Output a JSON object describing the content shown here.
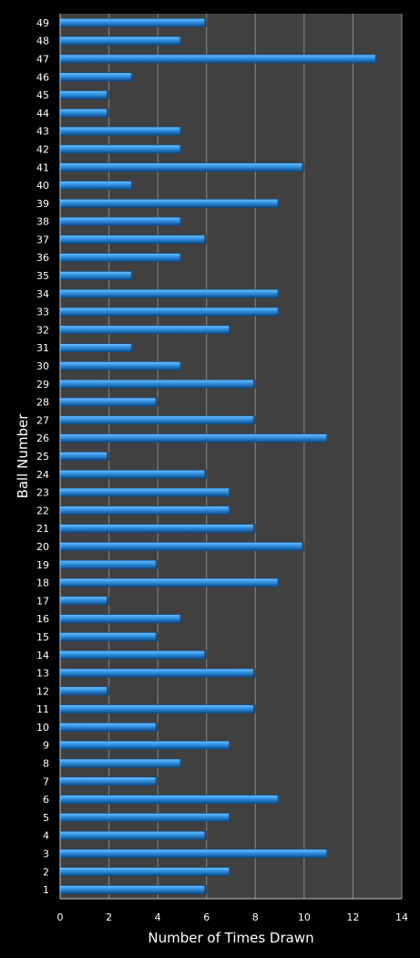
{
  "chart_data": {
    "type": "bar",
    "orientation": "horizontal",
    "xlabel": "Number of Times Drawn",
    "ylabel": "Ball Number",
    "xlim": [
      0,
      14
    ],
    "x_ticks": [
      "0",
      "2",
      "4",
      "6",
      "8",
      "10",
      "12",
      "14"
    ],
    "grid": "vertical",
    "categories": [
      "1",
      "2",
      "3",
      "4",
      "5",
      "6",
      "7",
      "8",
      "9",
      "10",
      "11",
      "12",
      "13",
      "14",
      "15",
      "16",
      "17",
      "18",
      "19",
      "20",
      "21",
      "22",
      "23",
      "24",
      "25",
      "26",
      "27",
      "28",
      "29",
      "30",
      "31",
      "32",
      "33",
      "34",
      "35",
      "36",
      "37",
      "38",
      "39",
      "40",
      "41",
      "42",
      "43",
      "44",
      "45",
      "46",
      "47",
      "48",
      "49"
    ],
    "values": [
      6,
      7,
      11,
      6,
      7,
      9,
      4,
      5,
      7,
      4,
      8,
      2,
      8,
      6,
      4,
      5,
      2,
      9,
      4,
      10,
      8,
      7,
      7,
      6,
      2,
      11,
      8,
      4,
      8,
      5,
      3,
      7,
      9,
      9,
      3,
      5,
      6,
      5,
      9,
      3,
      10,
      5,
      5,
      2,
      2,
      3,
      13,
      5,
      6
    ],
    "colors": {
      "background": "#000000",
      "plot_background": "#404040",
      "gridline": "#8a8a8a",
      "bar_fill": "#2f8fe0",
      "bar_highlight": "#6cc0ff",
      "bar_shadow": "#0d4a86",
      "axis_line": "#c8c8c8",
      "text": "#ffffff"
    }
  }
}
